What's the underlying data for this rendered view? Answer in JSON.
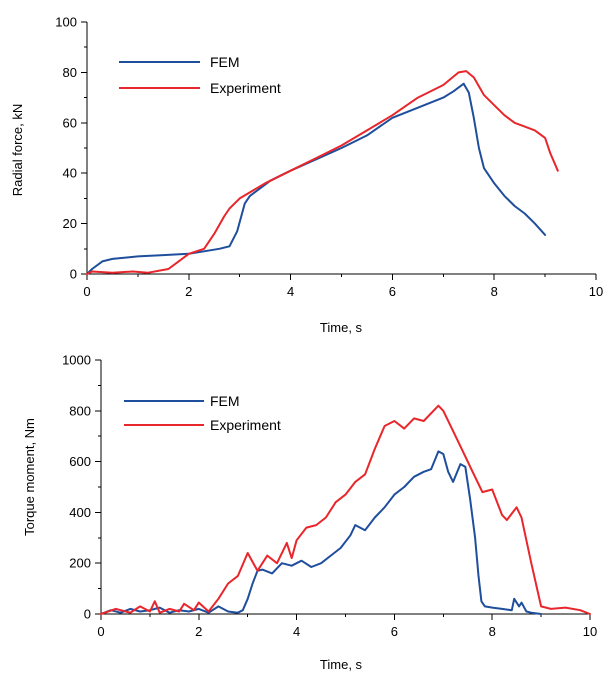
{
  "chart_data": [
    {
      "type": "line",
      "title": "",
      "xlabel": "Time, s",
      "ylabel": "Radial force, kN",
      "xlim": [
        0,
        10
      ],
      "ylim": [
        0,
        100
      ],
      "xticks": [
        0,
        2,
        4,
        6,
        8,
        10
      ],
      "yticks": [
        0,
        20,
        40,
        60,
        80,
        100
      ],
      "xtick_labels": [
        "0",
        "2",
        "4",
        "6",
        "8",
        "10"
      ],
      "ytick_labels": [
        "0",
        "20",
        "40",
        "60",
        "80",
        "100"
      ],
      "grid": false,
      "legend_position": "top-left",
      "series": [
        {
          "name": "FEM",
          "color": "#1f4e9c",
          "x": [
            0,
            0.1,
            0.3,
            0.5,
            1.0,
            1.5,
            2.0,
            2.3,
            2.6,
            2.8,
            2.95,
            3.1,
            3.2,
            3.4,
            3.6,
            3.8,
            4.0,
            4.5,
            5.0,
            5.5,
            6.0,
            6.5,
            7.0,
            7.2,
            7.4,
            7.5,
            7.6,
            7.7,
            7.8,
            7.9,
            8.0,
            8.2,
            8.4,
            8.6,
            8.8,
            9.0
          ],
          "y": [
            0,
            2,
            5,
            6,
            7,
            7.5,
            8,
            9,
            10,
            11,
            17,
            28,
            31,
            34,
            37,
            39,
            41,
            45.5,
            50,
            55,
            62,
            66,
            70,
            72.5,
            75.5,
            72,
            62,
            50,
            42,
            39,
            36,
            31,
            27,
            24,
            20,
            15.5
          ]
        },
        {
          "name": "Experiment",
          "color": "#e8262b",
          "x": [
            0,
            0.1,
            0.5,
            0.9,
            1.2,
            1.6,
            1.8,
            2.0,
            2.3,
            2.5,
            2.7,
            2.8,
            3.0,
            3.5,
            4.0,
            4.5,
            5.0,
            5.5,
            6.0,
            6.5,
            7.0,
            7.3,
            7.45,
            7.6,
            7.8,
            8.0,
            8.2,
            8.4,
            8.6,
            8.8,
            9.0,
            9.1,
            9.25
          ],
          "y": [
            0,
            1,
            0.5,
            1,
            0.5,
            2,
            5,
            8,
            10,
            16,
            23,
            26,
            30,
            36,
            41,
            46,
            51,
            57,
            63,
            70,
            75,
            80,
            80.5,
            78,
            71,
            67,
            63,
            60,
            58.5,
            57,
            54,
            48,
            41
          ]
        }
      ]
    },
    {
      "type": "line",
      "title": "",
      "xlabel": "Time, s",
      "ylabel": "Torque moment, Nm",
      "xlim": [
        0,
        10
      ],
      "ylim": [
        0,
        1000
      ],
      "xticks": [
        0,
        2,
        4,
        6,
        8,
        10
      ],
      "yticks": [
        0,
        200,
        400,
        600,
        800,
        1000
      ],
      "xtick_labels": [
        "0",
        "2",
        "4",
        "6",
        "8",
        "10"
      ],
      "ytick_labels": [
        "0",
        "200",
        "400",
        "600",
        "800",
        "1000"
      ],
      "grid": false,
      "legend_position": "top-left",
      "series": [
        {
          "name": "FEM",
          "color": "#1f4e9c",
          "x": [
            0,
            0.2,
            0.4,
            0.6,
            0.8,
            1.0,
            1.2,
            1.4,
            1.6,
            1.8,
            2.0,
            2.2,
            2.4,
            2.6,
            2.8,
            2.9,
            3.0,
            3.1,
            3.2,
            3.3,
            3.5,
            3.7,
            3.9,
            4.1,
            4.3,
            4.5,
            4.7,
            4.9,
            5.1,
            5.2,
            5.4,
            5.6,
            5.8,
            6.0,
            6.2,
            6.4,
            6.6,
            6.75,
            6.9,
            7.0,
            7.1,
            7.2,
            7.35,
            7.45,
            7.55,
            7.65,
            7.72,
            7.78,
            7.85,
            8.0,
            8.2,
            8.4,
            8.45,
            8.55,
            8.6,
            8.7,
            8.8,
            9.0
          ],
          "y": [
            0,
            15,
            5,
            20,
            10,
            15,
            25,
            5,
            15,
            10,
            20,
            5,
            30,
            10,
            5,
            15,
            60,
            120,
            170,
            175,
            160,
            200,
            190,
            210,
            185,
            200,
            230,
            260,
            310,
            350,
            330,
            380,
            420,
            470,
            500,
            540,
            560,
            570,
            640,
            630,
            560,
            520,
            590,
            580,
            450,
            300,
            150,
            50,
            30,
            25,
            20,
            15,
            60,
            30,
            45,
            10,
            5,
            0
          ]
        },
        {
          "name": "Experiment",
          "color": "#e8262b",
          "x": [
            0,
            0.3,
            0.6,
            0.8,
            1.0,
            1.1,
            1.2,
            1.4,
            1.6,
            1.7,
            1.9,
            2.0,
            2.2,
            2.4,
            2.6,
            2.8,
            3.0,
            3.2,
            3.4,
            3.6,
            3.8,
            3.9,
            4.0,
            4.2,
            4.4,
            4.6,
            4.8,
            5.0,
            5.2,
            5.4,
            5.6,
            5.8,
            6.0,
            6.2,
            6.4,
            6.6,
            6.9,
            7.0,
            7.2,
            7.4,
            7.6,
            7.8,
            8.0,
            8.2,
            8.3,
            8.5,
            8.6,
            8.8,
            9.0,
            9.2,
            9.5,
            9.8,
            10.0
          ],
          "y": [
            0,
            20,
            5,
            30,
            10,
            50,
            5,
            20,
            10,
            40,
            15,
            45,
            10,
            60,
            120,
            150,
            240,
            170,
            230,
            200,
            280,
            220,
            290,
            340,
            350,
            380,
            440,
            470,
            520,
            550,
            650,
            740,
            760,
            730,
            770,
            760,
            820,
            800,
            720,
            640,
            560,
            480,
            490,
            390,
            370,
            420,
            380,
            200,
            30,
            20,
            25,
            15,
            0
          ]
        }
      ]
    }
  ],
  "legend": {
    "top": {
      "fem_label": "FEM",
      "exp_label": "Experiment"
    },
    "bottom": {
      "fem_label": "FEM",
      "exp_label": "Experiment"
    }
  }
}
